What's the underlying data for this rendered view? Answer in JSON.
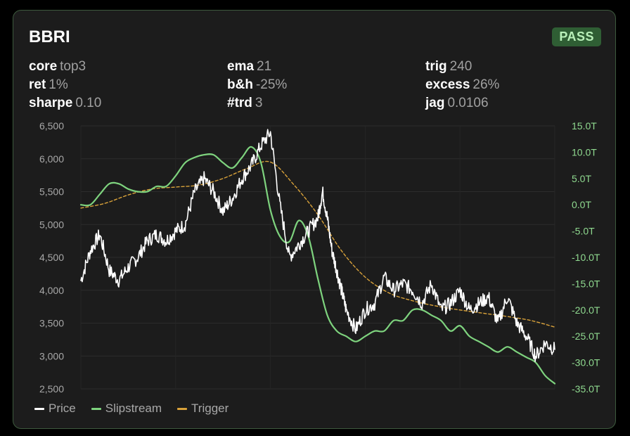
{
  "card": {
    "title": "BBRI",
    "badge": "PASS"
  },
  "stats": [
    {
      "key": "core",
      "value": "top3"
    },
    {
      "key": "ema",
      "value": "21"
    },
    {
      "key": "trig",
      "value": "240"
    },
    {
      "key": "ret",
      "value": "1%"
    },
    {
      "key": "b&h",
      "value": "-25%"
    },
    {
      "key": "excess",
      "value": "26%"
    },
    {
      "key": "sharpe",
      "value": "0.10"
    },
    {
      "key": "#trd",
      "value": "3"
    },
    {
      "key": "jag",
      "value": "0.0106"
    }
  ],
  "colors": {
    "price": "#ffffff",
    "slipstream": "#7ed37e",
    "trigger": "#d9a23a"
  },
  "chart_data": {
    "type": "line",
    "grid": true,
    "legend_position": "bottom-left",
    "y_left": {
      "range": [
        2500,
        6500
      ],
      "ticks": [
        "6,500",
        "6,000",
        "5,500",
        "5,000",
        "4,500",
        "4,000",
        "3,500",
        "3,000",
        "2,500"
      ]
    },
    "y_right": {
      "range": [
        -35,
        15
      ],
      "ticks": [
        "15.0T",
        "10.0T",
        "5.0T",
        "0.0T",
        "-5.0T",
        "-10.0T",
        "-15.0T",
        "-20.0T",
        "-25.0T",
        "-30.0T",
        "-35.0T"
      ]
    },
    "x_range": [
      0,
      100
    ],
    "series": [
      {
        "name": "Price",
        "axis": "left",
        "x": [
          0,
          2,
          4,
          6,
          8,
          10,
          12,
          14,
          16,
          18,
          20,
          22,
          24,
          26,
          28,
          30,
          32,
          34,
          36,
          38,
          40,
          42,
          44,
          46,
          48,
          50,
          51,
          52,
          53,
          54,
          55,
          56,
          58,
          60,
          62,
          64,
          66,
          68,
          70,
          72,
          74,
          76,
          78,
          80,
          82,
          84,
          86,
          88,
          90,
          92,
          94,
          96,
          98,
          100
        ],
        "values": [
          4150,
          4600,
          4850,
          4300,
          4150,
          4350,
          4500,
          4750,
          4850,
          4750,
          4900,
          5000,
          5500,
          5700,
          5500,
          5200,
          5400,
          5700,
          5900,
          6200,
          6400,
          5300,
          4500,
          4700,
          4900,
          5100,
          5500,
          5100,
          4600,
          4300,
          4000,
          3700,
          3400,
          3700,
          3800,
          4200,
          4000,
          4100,
          4000,
          3800,
          4100,
          3700,
          3800,
          4000,
          3700,
          3800,
          3900,
          3500,
          3900,
          3500,
          3300,
          3000,
          3200,
          3100
        ],
        "stroke": "#ffffff"
      },
      {
        "name": "Slipstream",
        "axis": "right",
        "x": [
          0,
          2,
          4,
          6,
          8,
          10,
          12,
          14,
          16,
          18,
          20,
          22,
          24,
          26,
          28,
          30,
          32,
          34,
          36,
          38,
          40,
          42,
          44,
          46,
          48,
          50,
          52,
          54,
          56,
          58,
          60,
          62,
          64,
          66,
          68,
          70,
          72,
          74,
          76,
          78,
          80,
          82,
          84,
          86,
          88,
          90,
          92,
          94,
          96,
          98,
          100
        ],
        "values": [
          0,
          0,
          2,
          4,
          4,
          3,
          2.5,
          2.5,
          3.5,
          3.5,
          5.5,
          8,
          9,
          9.5,
          9.5,
          8,
          7,
          9,
          11,
          8,
          -1,
          -6,
          -7,
          -3,
          -6,
          -14,
          -21,
          -24,
          -25,
          -26,
          -25,
          -24,
          -24,
          -22,
          -22,
          -20,
          -20,
          -21,
          -22,
          -24,
          -23,
          -25,
          -26,
          -27,
          -28,
          -27,
          -28,
          -29,
          -30,
          -32.5,
          -34
        ],
        "stroke": "#7ed37e"
      },
      {
        "name": "Trigger",
        "axis": "left",
        "x": [
          0,
          5,
          10,
          15,
          20,
          25,
          30,
          35,
          40,
          45,
          50,
          55,
          60,
          65,
          70,
          75,
          80,
          85,
          90,
          95,
          100
        ],
        "values": [
          5250,
          5320,
          5450,
          5540,
          5570,
          5600,
          5700,
          5850,
          5950,
          5600,
          5150,
          4600,
          4200,
          3960,
          3840,
          3760,
          3700,
          3650,
          3600,
          3540,
          3440
        ],
        "stroke": "#d9a23a",
        "dashed": true
      }
    ]
  }
}
